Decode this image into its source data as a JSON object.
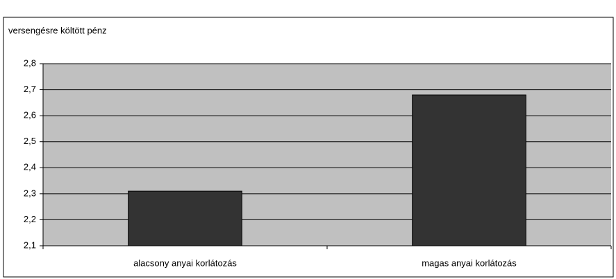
{
  "chart_data": {
    "type": "bar",
    "y_label": "versengésre költött pénz",
    "categories": [
      "alacsony anyai korlátozás",
      "magas anyai korlátozás"
    ],
    "values": [
      2.31,
      2.68
    ],
    "color": "#333333",
    "ylim": [
      2.1,
      2.8
    ],
    "yticks": [
      {
        "value": 2.1,
        "label": "2,1"
      },
      {
        "value": 2.2,
        "label": "2,2"
      },
      {
        "value": 2.3,
        "label": "2,3"
      },
      {
        "value": 2.4,
        "label": "2,4"
      },
      {
        "value": 2.5,
        "label": "2,5"
      },
      {
        "value": 2.6,
        "label": "2,6"
      },
      {
        "value": 2.7,
        "label": "2,7"
      },
      {
        "value": 2.8,
        "label": "2,8"
      }
    ],
    "grid": true
  }
}
